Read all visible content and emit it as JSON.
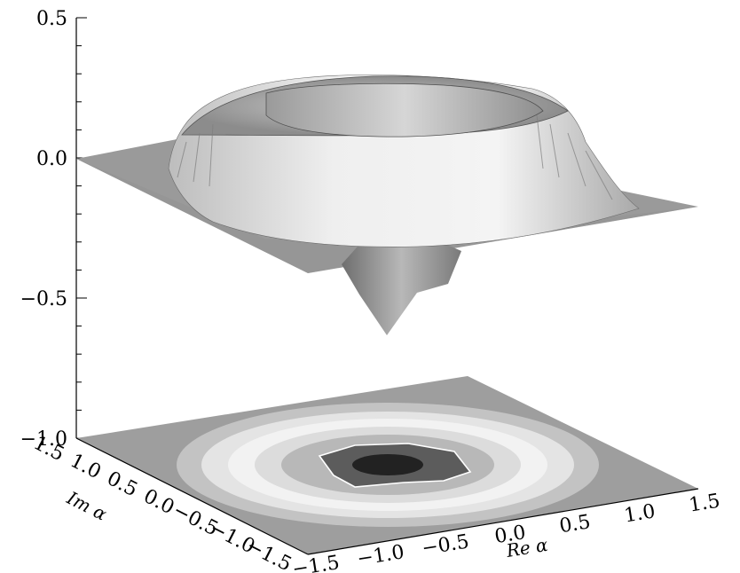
{
  "chart_data": {
    "type": "surface3d",
    "title": "",
    "xlabel": "Re α",
    "ylabel": "Im α",
    "zlabel": "",
    "xlim": [
      -1.5,
      1.5
    ],
    "ylim": [
      -1.5,
      1.5
    ],
    "zlim": [
      -1.0,
      0.5
    ],
    "x_ticks": [
      "−1.5",
      "−1.0",
      "−0.5",
      "0.0",
      "0.5",
      "1.0",
      "1.5"
    ],
    "y_ticks": [
      "−1.5",
      "−1.0",
      "−0.5",
      "0.0",
      "0.5",
      "1.0",
      "1.5"
    ],
    "z_ticks": [
      "−1.0",
      "−0.5",
      "0.0",
      "0.5"
    ],
    "surface_description_values": {
      "baseline": 0.0,
      "ring_radius": 0.9,
      "ring_peak_height": 0.38,
      "center_min": -0.63
    },
    "contour_projection": true,
    "grid": false,
    "colormap": "grayscale"
  }
}
